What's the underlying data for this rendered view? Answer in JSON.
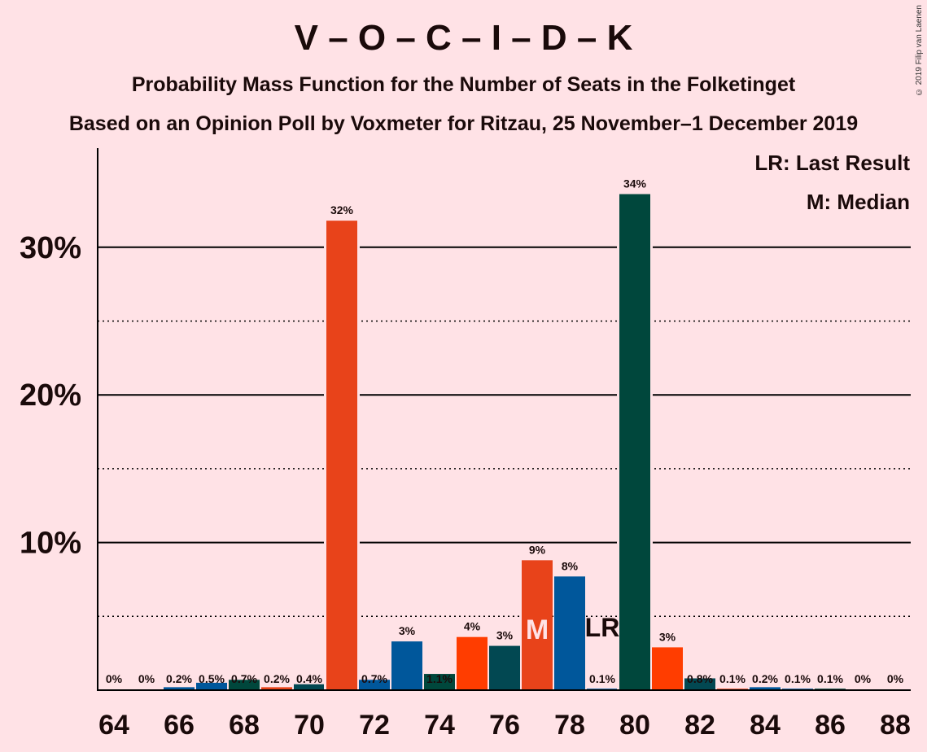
{
  "title": "V – O – C – I – D – K",
  "subtitle1": "Probability Mass Function for the Number of Seats in the Folketinget",
  "subtitle2": "Based on an Opinion Poll by Voxmeter for Ritzau, 25 November–1 December 2019",
  "copyright": "© 2019 Filip van Laenen",
  "legend": {
    "lr": "LR: Last Result",
    "m": "M: Median"
  },
  "markers": {
    "median_label": "M",
    "median_seat": 77,
    "lr_label": "LR",
    "lr_seat": 79
  },
  "chart_data": {
    "type": "bar",
    "xlabel": "",
    "ylabel": "",
    "ylim": [
      0,
      35.5
    ],
    "yticks_major": [
      10,
      20,
      30
    ],
    "ytick_labels": [
      "10%",
      "20%",
      "30%"
    ],
    "yticks_minor": [
      5,
      15,
      25
    ],
    "xtick_labels": [
      64,
      66,
      68,
      70,
      72,
      74,
      76,
      78,
      80,
      82,
      84,
      86,
      88
    ],
    "bars": [
      {
        "seat": 64,
        "value": 0,
        "label": "0%",
        "color": "#E8431A"
      },
      {
        "seat": 65,
        "value": 0,
        "label": "0%",
        "color": "#E8431A"
      },
      {
        "seat": 66,
        "value": 0.2,
        "label": "0.2%",
        "color": "#00579B"
      },
      {
        "seat": 67,
        "value": 0.5,
        "label": "0.5%",
        "color": "#00579B"
      },
      {
        "seat": 68,
        "value": 0.7,
        "label": "0.7%",
        "color": "#00473C"
      },
      {
        "seat": 69,
        "value": 0.2,
        "label": "0.2%",
        "color": "#E8431A"
      },
      {
        "seat": 70,
        "value": 0.4,
        "label": "0.4%",
        "color": "#024852"
      },
      {
        "seat": 71,
        "value": 31.8,
        "label": "32%",
        "color": "#E8431A"
      },
      {
        "seat": 72,
        "value": 0.7,
        "label": "0.7%",
        "color": "#00579B"
      },
      {
        "seat": 73,
        "value": 3.3,
        "label": "3%",
        "color": "#00579B"
      },
      {
        "seat": 74,
        "value": 1.1,
        "label": "1.1%",
        "color": "#00473C"
      },
      {
        "seat": 75,
        "value": 3.6,
        "label": "4%",
        "color": "#FF3D00"
      },
      {
        "seat": 76,
        "value": 3.0,
        "label": "3%",
        "color": "#024852"
      },
      {
        "seat": 77,
        "value": 8.8,
        "label": "9%",
        "color": "#E8431A"
      },
      {
        "seat": 78,
        "value": 7.7,
        "label": "8%",
        "color": "#00579B"
      },
      {
        "seat": 79,
        "value": 0.1,
        "label": "0.1%",
        "color": "#00579B"
      },
      {
        "seat": 80,
        "value": 33.6,
        "label": "34%",
        "color": "#00473C"
      },
      {
        "seat": 81,
        "value": 2.9,
        "label": "3%",
        "color": "#FF3D00"
      },
      {
        "seat": 82,
        "value": 0.8,
        "label": "0.8%",
        "color": "#024852"
      },
      {
        "seat": 83,
        "value": 0.1,
        "label": "0.1%",
        "color": "#E8431A"
      },
      {
        "seat": 84,
        "value": 0.2,
        "label": "0.2%",
        "color": "#00579B"
      },
      {
        "seat": 85,
        "value": 0.1,
        "label": "0.1%",
        "color": "#00579B"
      },
      {
        "seat": 86,
        "value": 0.1,
        "label": "0.1%",
        "color": "#00473C"
      },
      {
        "seat": 87,
        "value": 0,
        "label": "0%",
        "color": "#FF3D00"
      },
      {
        "seat": 88,
        "value": 0,
        "label": "0%",
        "color": "#024852"
      }
    ]
  }
}
